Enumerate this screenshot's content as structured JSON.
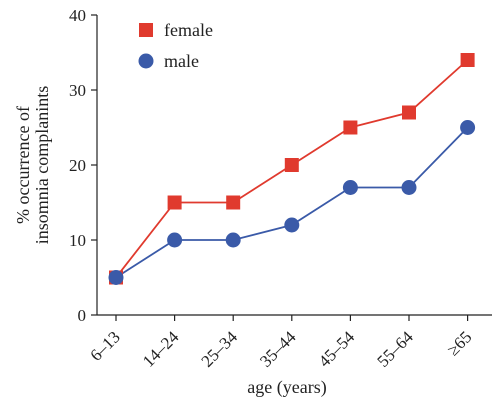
{
  "chart_data": {
    "type": "line",
    "title": "",
    "xlabel": "age (years)",
    "ylabel_lines": [
      "% occurrence of",
      "insomnia complanints"
    ],
    "categories": [
      "6–13",
      "14–24",
      "25–34",
      "35–44",
      "45–54",
      "55–64",
      "≥65"
    ],
    "yticks": [
      "0",
      "10",
      "20",
      "30",
      "40"
    ],
    "ylim": [
      0,
      40
    ],
    "grid": false,
    "legend_position": "top-left",
    "series": [
      {
        "name": "female",
        "marker": "square",
        "color": "#e03a2e",
        "values": [
          5,
          15,
          15,
          20,
          25,
          27,
          34
        ]
      },
      {
        "name": "male",
        "marker": "circle",
        "color": "#3a5aa8",
        "values": [
          5,
          10,
          10,
          12,
          17,
          17,
          25
        ]
      }
    ]
  }
}
